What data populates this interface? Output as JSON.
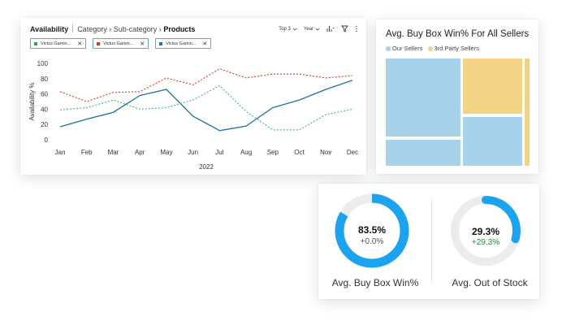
{
  "line_panel": {
    "title": "Availability",
    "breadcrumb": [
      "Category",
      "Sub-category",
      "Products"
    ],
    "breadcrumb_separator": "›",
    "toolbar": {
      "top_filter": "Top 3",
      "period_filter": "Year"
    },
    "chips": [
      {
        "label": "Victus Gamin...",
        "color": "#2ea84a"
      },
      {
        "label": "Victus Gamin...",
        "color": "#d9362b"
      },
      {
        "label": "Victus Gamin...",
        "color": "#1f77b4"
      }
    ],
    "chart_data": {
      "type": "line",
      "categories": [
        "Jan",
        "Feb",
        "Mar",
        "Apr",
        "May",
        "Jun",
        "Jul",
        "Aug",
        "Sep",
        "Oct",
        "Nov",
        "Dec"
      ],
      "ylabel": "Availability %",
      "xlabel": "2022",
      "ylim": [
        0,
        100
      ],
      "yticks": [
        0,
        20,
        40,
        60,
        80,
        100
      ],
      "grid": false,
      "series": [
        {
          "color": "#1a6fa3",
          "style": "solid",
          "values": [
            17,
            27,
            36,
            58,
            66,
            31,
            12,
            18,
            42,
            52,
            66,
            78
          ]
        },
        {
          "color": "#d9362b",
          "style": "dotted",
          "values": [
            63,
            50,
            62,
            63,
            81,
            72,
            93,
            81,
            86,
            86,
            81,
            84
          ]
        },
        {
          "color": "#3cb878",
          "style": "dotted",
          "values": [
            39,
            42,
            52,
            40,
            42,
            52,
            71,
            37,
            13,
            13,
            33,
            40
          ]
        }
      ]
    }
  },
  "treemap_panel": {
    "title": "Avg. Buy Box Win% For All Sellers",
    "legend": [
      {
        "label": "Our Sellers",
        "color": "#a8d1ea"
      },
      {
        "label": "3rd Party Sellers",
        "color": "#f3d385"
      }
    ]
  },
  "kpis": [
    {
      "value": "83.5%",
      "delta": "+0.0%",
      "label": "Avg. Buy Box Win%",
      "fraction": 0.835,
      "ring_color": "#1ca3f0",
      "delta_color": "#555555"
    },
    {
      "value": "29.3%",
      "delta": "+29.3%",
      "label": "Avg. Out of Stock",
      "fraction": 0.293,
      "ring_color": "#1ca3f0",
      "delta_color": "#1f8a3b"
    }
  ]
}
